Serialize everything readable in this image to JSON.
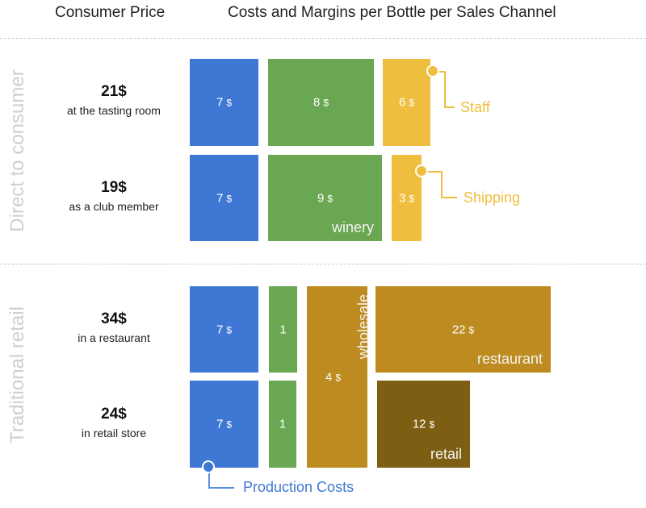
{
  "headers": {
    "consumer_price": "Consumer Price",
    "costs": "Costs and Margins per Bottle per Sales Channel"
  },
  "sections": {
    "direct": "Direct to consumer",
    "traditional": "Traditional retail"
  },
  "rows": [
    {
      "price": "21$",
      "desc": "at the tasting room",
      "production": "7",
      "winery": "8",
      "third": "6"
    },
    {
      "price": "19$",
      "desc": "as a club member",
      "production": "7",
      "winery": "9",
      "third": "3"
    },
    {
      "price": "34$",
      "desc": "in a restaurant",
      "production": "7",
      "winery": "1",
      "outlet": "22"
    },
    {
      "price": "24$",
      "desc": "in retail store",
      "production": "7",
      "winery": "1",
      "outlet": "12"
    }
  ],
  "wholesale": {
    "value": "4",
    "label": "wholesale"
  },
  "currency": "$",
  "tags": {
    "winery": "winery",
    "restaurant": "restaurant",
    "retail": "retail"
  },
  "callouts": {
    "staff": "Staff",
    "shipping": "Shipping",
    "production": "Production Costs"
  },
  "colors": {
    "production": "#3f78d4",
    "winery": "#6aa753",
    "direct_cost": "#f0be3e",
    "wholesale": "#bd8b1f",
    "restaurant": "#bd8b1f",
    "retail": "#7e5e12",
    "section_label": "#cfcfcf"
  }
}
